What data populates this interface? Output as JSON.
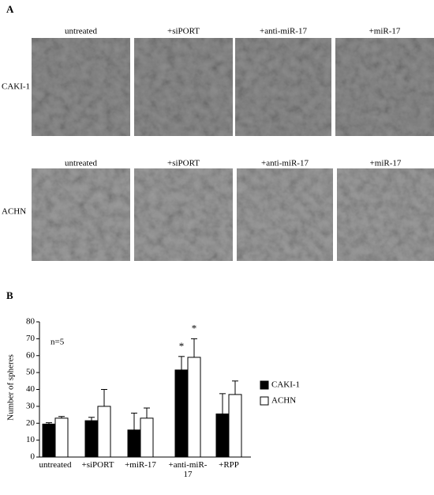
{
  "panel_a": {
    "label": "A",
    "rows": [
      {
        "label": "CAKI-1",
        "columns": [
          "untreated",
          "+siPORT",
          "+anti-miR-17",
          "+miR-17"
        ]
      },
      {
        "label": "ACHN",
        "columns": [
          "untreated",
          "+siPORT",
          "+anti-miR-17",
          "+miR-17"
        ]
      }
    ]
  },
  "chart_data": {
    "type": "bar",
    "panel_label": "B",
    "y_label": "Number of spheres",
    "annotation": "n=5",
    "categories": [
      "untreated",
      "+siPORT",
      "+miR-17",
      "+anti-miR-17",
      "+RPP"
    ],
    "series": [
      {
        "name": "CAKI-1",
        "color": "#000000",
        "values": [
          19.5,
          21.5,
          16,
          51.5,
          25.5
        ],
        "errors": [
          0.8,
          2,
          10,
          8,
          12
        ],
        "significance": [
          null,
          null,
          null,
          "*",
          null
        ]
      },
      {
        "name": "ACHN",
        "color": "#ffffff",
        "values": [
          23,
          30,
          23,
          59,
          37
        ],
        "errors": [
          1,
          10,
          6,
          11,
          8
        ],
        "significance": [
          null,
          null,
          null,
          "*",
          null
        ]
      }
    ],
    "ylim": [
      0,
      80
    ],
    "yticks": [
      0,
      10,
      20,
      30,
      40,
      50,
      60,
      70,
      80
    ],
    "legend": "right"
  }
}
